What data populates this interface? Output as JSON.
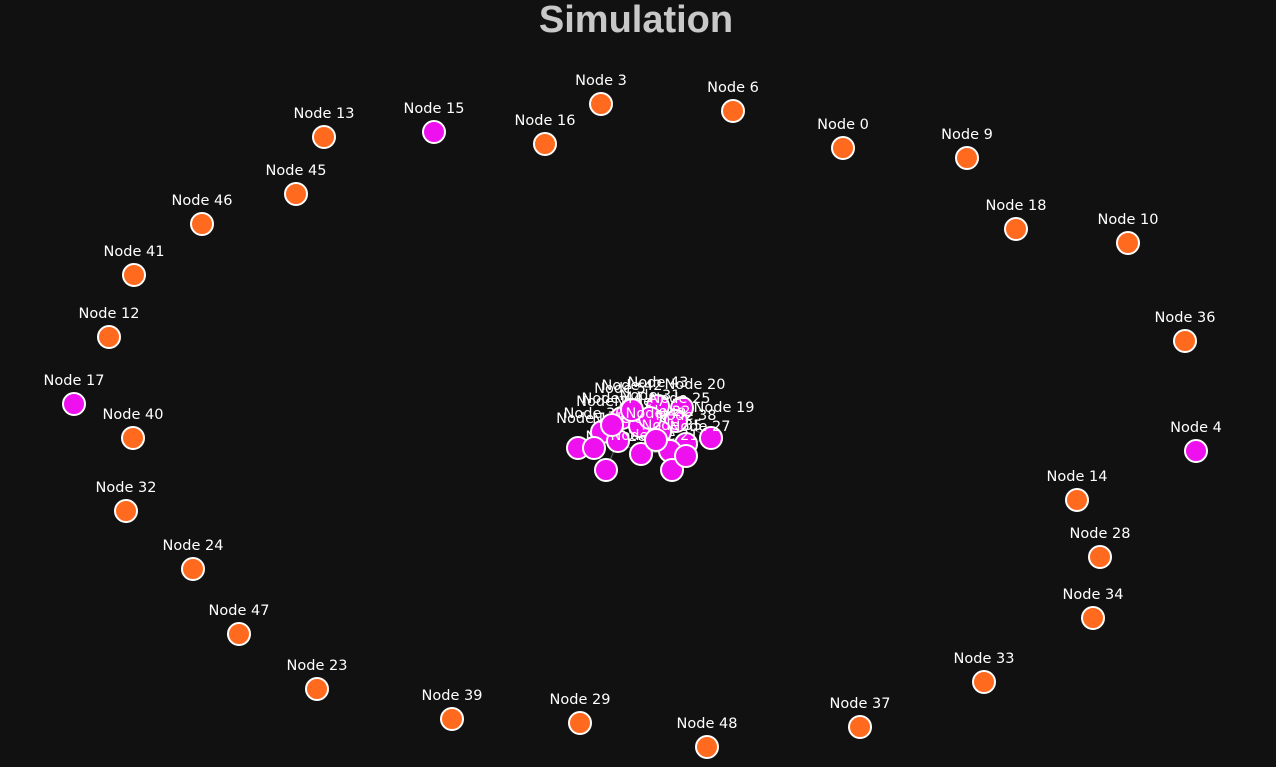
{
  "title": "Simulation",
  "colors": {
    "background": "#111111",
    "title": "#c8c8c8",
    "label": "#ffffff",
    "node_stroke": "#ffffff",
    "status": {
      "orange": "#ff6a1f",
      "magenta": "#ee10ee"
    }
  },
  "nodes": [
    {
      "label": "Node 3",
      "status": "orange"
    },
    {
      "label": "Node 6",
      "status": "orange"
    },
    {
      "label": "Node 0",
      "status": "orange"
    },
    {
      "label": "Node 9",
      "status": "orange"
    },
    {
      "label": "Node 16",
      "status": "orange"
    },
    {
      "label": "Node 15",
      "status": "magenta"
    },
    {
      "label": "Node 13",
      "status": "orange"
    },
    {
      "label": "Node 45",
      "status": "orange"
    },
    {
      "label": "Node 46",
      "status": "orange"
    },
    {
      "label": "Node 41",
      "status": "orange"
    },
    {
      "label": "Node 12",
      "status": "orange"
    },
    {
      "label": "Node 17",
      "status": "magenta"
    },
    {
      "label": "Node 40",
      "status": "orange"
    },
    {
      "label": "Node 32",
      "status": "orange"
    },
    {
      "label": "Node 24",
      "status": "orange"
    },
    {
      "label": "Node 47",
      "status": "orange"
    },
    {
      "label": "Node 23",
      "status": "orange"
    },
    {
      "label": "Node 39",
      "status": "orange"
    },
    {
      "label": "Node 29",
      "status": "orange"
    },
    {
      "label": "Node 48",
      "status": "orange"
    },
    {
      "label": "Node 37",
      "status": "orange"
    },
    {
      "label": "Node 33",
      "status": "orange"
    },
    {
      "label": "Node 34",
      "status": "orange"
    },
    {
      "label": "Node 28",
      "status": "orange"
    },
    {
      "label": "Node 14",
      "status": "orange"
    },
    {
      "label": "Node 4",
      "status": "magenta"
    },
    {
      "label": "Node 36",
      "status": "orange"
    },
    {
      "label": "Node 10",
      "status": "orange"
    },
    {
      "label": "Node 18",
      "status": "orange"
    },
    {
      "label": "Node 43",
      "status": "magenta"
    },
    {
      "label": "Node 20",
      "status": "magenta"
    },
    {
      "label": "Node 19",
      "status": "magenta"
    },
    {
      "label": "Node 25",
      "status": "magenta"
    },
    {
      "label": "Node 27",
      "status": "magenta"
    },
    {
      "label": "Node 21",
      "status": "magenta"
    },
    {
      "label": "Node 26",
      "status": "magenta"
    },
    {
      "label": "Node 1",
      "status": "magenta"
    },
    {
      "label": "Node 2",
      "status": "magenta"
    },
    {
      "label": "Node 5",
      "status": "magenta"
    },
    {
      "label": "Node 7",
      "status": "magenta"
    },
    {
      "label": "Node 8",
      "status": "magenta"
    },
    {
      "label": "Node 11",
      "status": "magenta"
    },
    {
      "label": "Node 22",
      "status": "magenta"
    },
    {
      "label": "Node 30",
      "status": "magenta"
    },
    {
      "label": "Node 31",
      "status": "magenta"
    },
    {
      "label": "Node 35",
      "status": "magenta"
    },
    {
      "label": "Node 38",
      "status": "magenta"
    },
    {
      "label": "Node 42",
      "status": "magenta"
    },
    {
      "label": "Node 44",
      "status": "magenta"
    },
    {
      "label": "Node 49",
      "status": "magenta"
    }
  ]
}
